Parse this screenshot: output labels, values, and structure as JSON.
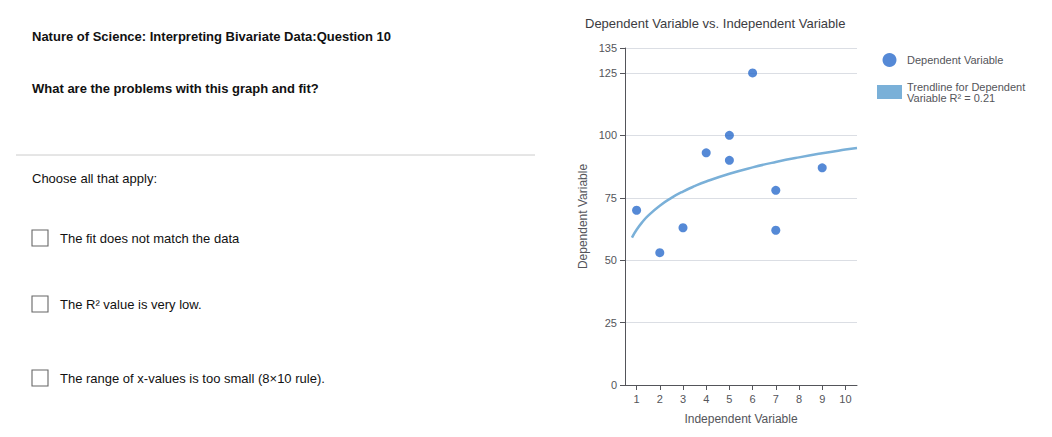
{
  "chart_data": {
    "type": "scatter",
    "title": "Dependent Variable vs. Independent Variable",
    "xlabel": "Independent Variable",
    "ylabel": "Dependent Variable",
    "series": [
      {
        "name": "Dependent Variable",
        "type": "scatter",
        "color": "#2b6bcc",
        "x": [
          1,
          2,
          3,
          4,
          5,
          5,
          6,
          7,
          7,
          9
        ],
        "values": [
          70,
          53,
          63,
          93,
          90,
          100,
          125,
          78,
          62,
          87
        ]
      },
      {
        "name": "Trendline for Dependent\nVariable R² = 0.21",
        "type": "line",
        "color": "#7ab0d8",
        "x": [
          0.8,
          1,
          1.25,
          1.5,
          2,
          2.5,
          3,
          3.5,
          4,
          5,
          6,
          7,
          8,
          9,
          10,
          10.5
        ],
        "values": [
          59.07,
          62.18,
          65.3,
          67.84,
          71.85,
          74.96,
          77.51,
          79.66,
          81.52,
          84.63,
          87.18,
          89.33,
          91.19,
          92.83,
          94.3,
          94.98
        ]
      }
    ],
    "xlim": [
      0.5,
      10.5
    ],
    "ylim": [
      0,
      135
    ],
    "xticks": [
      1,
      2,
      3,
      4,
      5,
      6,
      7,
      8,
      9,
      10
    ],
    "yticks": [
      0,
      25,
      50,
      75,
      100,
      125
    ],
    "grid": "y",
    "legend": "right",
    "annotations": [
      "Nature of Science: Interpreting Bivariate Data:Question 10",
      "What are the problems with this graph and fit?",
      "Choose all that apply:",
      "The fit does not match the data",
      "The R² value is very low.",
      "The range of x-values is too small (8×10 rule)."
    ]
  }
}
